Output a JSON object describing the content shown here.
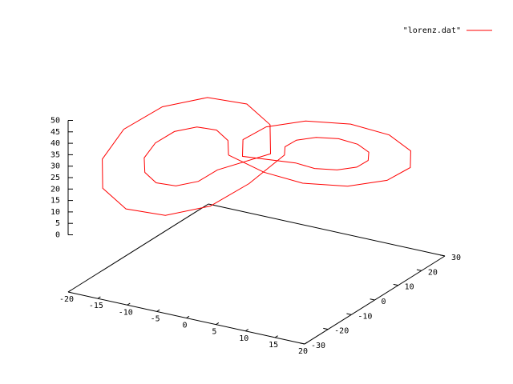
{
  "chart_data": {
    "type": "line3d",
    "xlim": [
      -20,
      20
    ],
    "xticks": [
      -20,
      -15,
      -10,
      -5,
      0,
      5,
      10,
      15,
      20
    ],
    "ylim": [
      -30,
      30
    ],
    "yticks": [
      -30,
      -20,
      -10,
      0,
      10,
      20,
      30
    ],
    "zlim": [
      0,
      50
    ],
    "zticks": [
      0,
      5,
      10,
      15,
      20,
      25,
      30,
      35,
      40,
      45,
      50
    ],
    "legend": "top-right",
    "series": [
      {
        "name": "\"lorenz.dat\"",
        "color": "#ff0000",
        "x": [
          -3.5,
          -4.2,
          -6,
          -8.5,
          -11,
          -12.8,
          -13.5,
          -12.8,
          -11,
          -8.5,
          -6,
          -4.2,
          1.5,
          0.2,
          -3.5,
          -8.5,
          -13.5,
          -17.2,
          -18.5,
          -17.2,
          -13.5,
          -8.5,
          -3.5,
          0.2,
          3.5,
          4.2,
          6,
          8.5,
          11,
          12.8,
          13.5,
          12.8,
          11,
          8.5,
          6,
          4.2,
          -1.5,
          -0.2,
          3.5,
          8.5,
          13.5,
          17.2,
          18.5,
          17.2,
          13.5,
          8.5,
          3.5,
          -0.2,
          -3.5
        ],
        "y": [
          -3.1,
          -1.6,
          -1.9,
          -4,
          -7.3,
          -10.9,
          -13.9,
          -15.4,
          -15.1,
          -13,
          -9.7,
          -6.1,
          2.2,
          5.3,
          4.7,
          0.5,
          -6.1,
          -13.3,
          -19.2,
          -22.3,
          -21.7,
          -17.5,
          -10.9,
          -3.7,
          3.1,
          1.6,
          1.9,
          4,
          7.3,
          10.9,
          13.9,
          15.4,
          15.1,
          13,
          9.7,
          6.1,
          -2.2,
          -5.3,
          -4.7,
          -0.5,
          6.1,
          13.3,
          19.2,
          22.3,
          21.7,
          17.5,
          10.9,
          3.7,
          -3.1
        ],
        "values": [
          27,
          32,
          35.7,
          37,
          35.7,
          32,
          27,
          22,
          18.3,
          17,
          18.3,
          22,
          27,
          37,
          44.3,
          47,
          44.3,
          37,
          27,
          17,
          9.7,
          7,
          9.7,
          17,
          27,
          32,
          35.7,
          37,
          35.7,
          32,
          27,
          22,
          18.3,
          17,
          18.3,
          22,
          27,
          37,
          44.3,
          47,
          44.3,
          37,
          27,
          17,
          9.7,
          7,
          9.7,
          17,
          27
        ]
      }
    ]
  }
}
